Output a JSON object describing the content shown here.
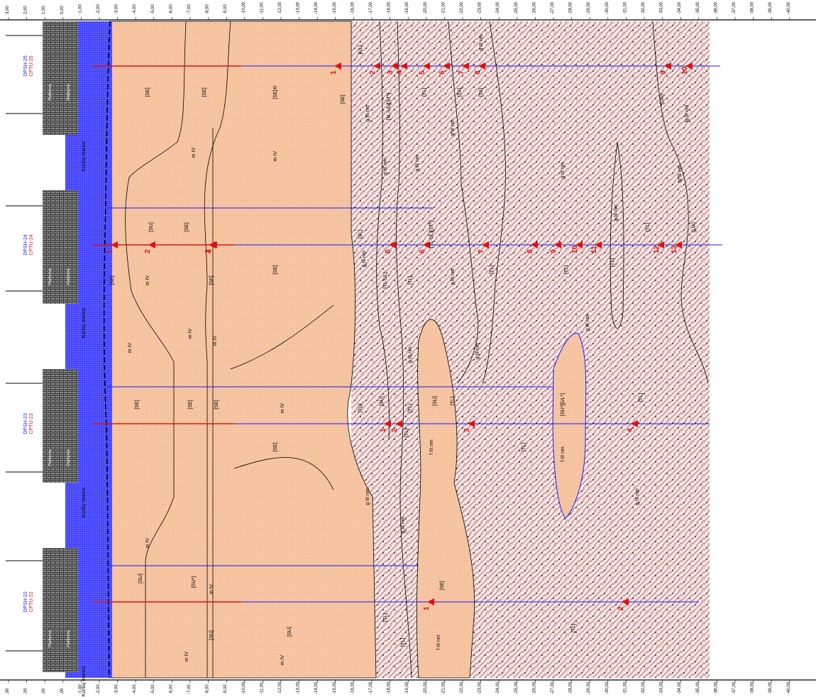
{
  "scale": {
    "top": [
      "3,00",
      "2,00",
      "1,00",
      "0,00",
      "-1,00",
      "-2,00",
      "-3,00",
      "-4,00",
      "-5,00",
      "-6,00",
      "-7,00",
      "-8,00",
      "-9,00",
      "-10,00",
      "-11,00",
      "-12,00",
      "-13,00",
      "-14,00",
      "-15,00",
      "-16,00",
      "-17,00",
      "-18,00",
      "-19,00",
      "-20,00",
      "-21,00",
      "-22,00",
      "-23,00",
      "-24,00",
      "-25,00",
      "-26,00",
      "-27,00",
      "-28,00",
      "-29,00",
      "-30,00",
      "-31,00",
      "-32,00",
      "-33,00",
      "-34,00",
      "-35,00",
      "-36,00",
      "-37,00",
      "-38,00",
      "-39,00",
      "-40,00"
    ],
    "bottom": [
      ",00",
      ",00",
      ",00",
      ",00",
      "-1,00",
      "-2,00",
      "-3,00",
      "-4,00",
      "-5,00",
      "-6,00",
      "-7,00",
      "-8,00",
      "-9,00",
      "-10,00",
      "-11,00",
      "-12,00",
      "-13,00",
      "-14,00",
      "-15,00",
      "-16,00",
      "-17,00",
      "-18,00",
      "-19,00",
      "-20,00",
      "-21,00",
      "-22,00",
      "-23,00",
      "-24,00",
      "-25,00",
      "-26,00",
      "-27,00",
      "-28,00",
      "-29,00",
      "-30,00",
      "-31,00",
      "-32,00",
      "-33,00",
      "-34,00",
      "-35,00",
      "-36,00",
      "-37,00",
      "-38,00",
      "-39,00",
      "-40,00"
    ]
  },
  "water_body": "Kuršių marios",
  "platform_label": "Platforma",
  "boreholes": [
    {
      "dpsh": "DPSH-25",
      "cptu": "CPTU-25",
      "samples": [
        "1",
        "2",
        "3",
        "4",
        "5",
        "6",
        "7",
        "8",
        "9",
        "10"
      ]
    },
    {
      "dpsh": "DPSH-24",
      "cptu": "CPTU-24",
      "samples": [
        "1",
        "2",
        "3",
        "4",
        "5",
        "6",
        "7",
        "8",
        "9",
        "10",
        "11",
        "12",
        "13"
      ]
    },
    {
      "dpsh": "DPSH-23",
      "cptu": "CPTU-23",
      "samples": [
        "1",
        "2",
        "3",
        "4"
      ]
    },
    {
      "dpsh": "DPSH-22",
      "cptu": "CPTU-22",
      "samples": [
        "1",
        "2"
      ]
    }
  ],
  "units": {
    "m4": "m IV",
    "g3nm": "g III nm",
    "f3nm": "f III nm",
    "lg3nm": "lg III nm"
  },
  "soil_codes": [
    "[SE]",
    "[SU]",
    "[TL]",
    "[SU*]",
    "[TL-UL]",
    "[UL]",
    "[SU*][UL*]",
    "[UL]-[SU*]",
    "[TL-UL][ST*]",
    "[TA]",
    "[UA]",
    "[SE]⑩"
  ],
  "colors": {
    "water": "#3333ff",
    "sand": "#f8c9a6",
    "clay": "#a03838",
    "borehole_blue": "#1a1aff",
    "sample_red": "#e01010"
  }
}
